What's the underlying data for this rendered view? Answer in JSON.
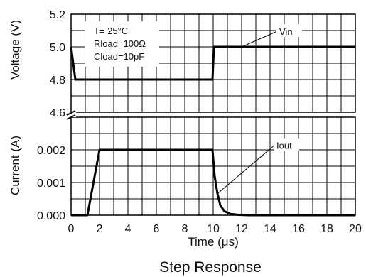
{
  "chart_data": {
    "type": "line",
    "caption": "Step Response",
    "xlabel": "Time (μs)",
    "x_ticks": [
      "0",
      "2",
      "4",
      "6",
      "8",
      "10",
      "12",
      "14",
      "16",
      "18",
      "20"
    ],
    "xlim": [
      0,
      20
    ],
    "grid": true,
    "panels": [
      {
        "ylabel": "Voltage (V)",
        "y_ticks": [
          "5.2",
          "5.0",
          "4.8",
          "4.6"
        ],
        "ylim": [
          4.6,
          5.2
        ],
        "y_broken_at_bottom": true,
        "series": [
          {
            "name": "Vin",
            "x": [
              0,
              0.3,
              9.95,
              10.05,
              20
            ],
            "y": [
              5.0,
              4.8,
              4.8,
              5.0,
              5.0
            ]
          }
        ],
        "annotations": [
          {
            "text": "Vin",
            "target_x": 12,
            "target_y": 5.0
          }
        ],
        "conditions": [
          "T= 25°C",
          "Rload=100Ω",
          "Cload=10pF"
        ]
      },
      {
        "ylabel": "Current (A)",
        "y_ticks": [
          "0.002",
          "0.001",
          "0.000"
        ],
        "ylim": [
          0,
          0.002
        ],
        "series": [
          {
            "name": "Iout",
            "x": [
              0,
              1.15,
              2.0,
              9.95,
              10.1,
              10.3,
              10.5,
              10.8,
              11.2,
              11.8,
              12.5,
              20
            ],
            "y": [
              0.0,
              0.0,
              0.002,
              0.002,
              0.0012,
              0.00066,
              0.0003,
              0.00012,
              4e-05,
              1e-05,
              0.0,
              0.0
            ]
          }
        ],
        "annotations": [
          {
            "text": "Iout",
            "target_x": 10.3,
            "target_y": 0.00066
          }
        ]
      }
    ]
  }
}
